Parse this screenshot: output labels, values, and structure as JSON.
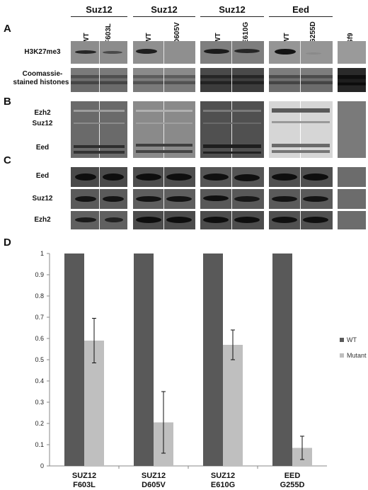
{
  "figure": {
    "groups": [
      {
        "title": "Suz12",
        "lanes": [
          "WT",
          "F603L"
        ]
      },
      {
        "title": "Suz12",
        "lanes": [
          "WT",
          "D605V"
        ]
      },
      {
        "title": "Suz12",
        "lanes": [
          "WT",
          "E610G"
        ]
      },
      {
        "title": "Eed",
        "lanes": [
          "WT",
          "G255D"
        ]
      }
    ],
    "control_lane": "Sf9",
    "panels": {
      "a": {
        "letter": "A",
        "rows": [
          "H3K27me3",
          "Coomassie-",
          "stained histones"
        ]
      },
      "b": {
        "letter": "B",
        "rows": [
          "Ezh2",
          "Suz12",
          "Eed"
        ]
      },
      "c": {
        "letter": "C",
        "rows": [
          "Eed",
          "Suz12",
          "Ezh2"
        ]
      },
      "d": {
        "letter": "D"
      }
    },
    "colors": {
      "wt": "#595959",
      "mutant": "#bfbfbf"
    }
  },
  "chart_data": {
    "type": "bar",
    "categories": [
      [
        "SUZ12",
        "F603L"
      ],
      [
        "SUZ12",
        "D605V"
      ],
      [
        "SUZ12",
        "E610G"
      ],
      [
        "EED",
        "G255D"
      ]
    ],
    "series": [
      {
        "name": "WT",
        "values": [
          1,
          1,
          1,
          1
        ],
        "color": "#595959"
      },
      {
        "name": "Mutant",
        "values": [
          0.59,
          0.205,
          0.57,
          0.085
        ],
        "color": "#bfbfbf",
        "error": [
          0.105,
          0.145,
          0.07,
          0.055
        ]
      }
    ],
    "ylim": [
      0,
      1
    ],
    "yticks": [
      "0",
      "0.1",
      "0.2",
      "0.3",
      "0.4",
      "0.5",
      "0.6",
      "0.7",
      "0.8",
      "0.9",
      "1"
    ],
    "legend": [
      "WT",
      "Mutant"
    ],
    "legend_position": "right",
    "grid": false
  }
}
